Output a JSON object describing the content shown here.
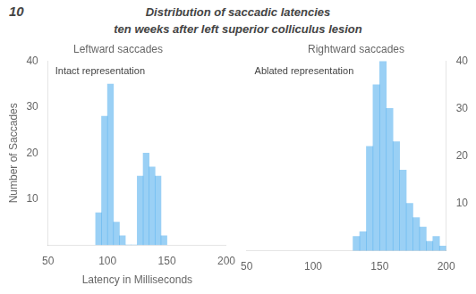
{
  "title": [
    "Distribution of saccadic latencies",
    "ten weeks after left superior colliculus lesion"
  ],
  "figure_number": "10",
  "chart_data": [
    {
      "type": "histogram",
      "title": "Leftward saccades",
      "annotation": "Intact representation",
      "xlabel": "Latency in Milliseconds",
      "ylabel": "Number of Saccades",
      "bins": [
        90,
        95,
        100,
        105,
        110,
        115,
        120,
        125,
        130,
        135,
        140,
        145,
        150
      ],
      "values": [
        7,
        28,
        35,
        5,
        2,
        0,
        0,
        15,
        20,
        17,
        15,
        2
      ],
      "xlim": [
        50,
        200
      ],
      "xticks": [
        50,
        100,
        150,
        200
      ],
      "ylim": [
        0,
        40
      ],
      "yticks": [
        10,
        20,
        30,
        40
      ],
      "grid": false
    },
    {
      "type": "histogram",
      "title": "Rightward saccades",
      "annotation": "Ablated representation",
      "bins": [
        130,
        135,
        140,
        145,
        150,
        155,
        160,
        165,
        170,
        175,
        180,
        185,
        190,
        195,
        200
      ],
      "values": [
        3,
        4,
        22,
        35,
        40,
        30,
        23,
        17,
        10,
        7,
        5,
        2,
        3,
        1
      ],
      "xlim": [
        50,
        200
      ],
      "xticks": [
        50,
        100,
        150,
        200
      ],
      "ylim": [
        0,
        40
      ],
      "yticks": [
        10,
        20,
        30,
        40
      ],
      "grid": false
    }
  ]
}
